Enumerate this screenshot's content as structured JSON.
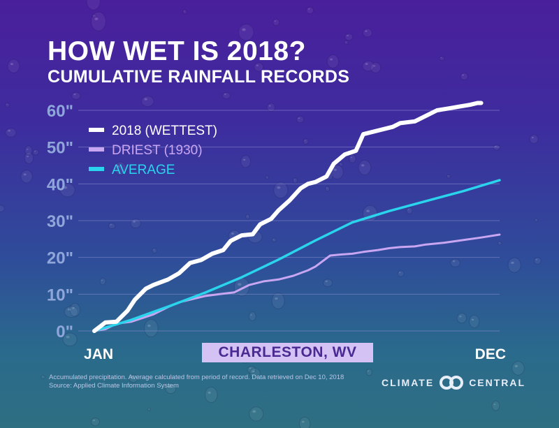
{
  "header": {
    "title": "HOW WET IS 2018?",
    "subtitle": "CUMULATIVE RAINFALL RECORDS"
  },
  "location_label": "CHARLESTON, WV",
  "footnote": {
    "line1": "Accumulated precipitation. Average calculated from period of record. Data retrieved on Dec 10, 2018",
    "line2": "Source: Applied Climate Information System"
  },
  "brand": {
    "left_word": "CLIMATE",
    "right_word": "CENTRAL"
  },
  "colors": {
    "wettest": "#ffffff",
    "driest": "#c9a6f2",
    "average": "#2ad4ec",
    "tick_label": "#8fa6da",
    "gridline": "#8a8fd0"
  },
  "chart_data": {
    "type": "line",
    "title": "CUMULATIVE RAINFALL RECORDS",
    "x_axis": {
      "type": "month-of-year",
      "tick_labels": [
        "JAN",
        "DEC"
      ],
      "range": [
        1,
        12
      ]
    },
    "y_axis": {
      "unit": "inches",
      "range": [
        0,
        60
      ],
      "tick_labels": [
        "0\"",
        "10\"",
        "20\"",
        "30\"",
        "40\"",
        "50\"",
        "60\""
      ],
      "tick_values": [
        0,
        10,
        20,
        30,
        40,
        50,
        60
      ]
    },
    "grid": "horizontal",
    "legend_position": "top-left",
    "series": [
      {
        "name": "2018 (WETTEST)",
        "color_key": "wettest",
        "x": [
          1.0,
          1.3,
          1.6,
          1.9,
          2.1,
          2.4,
          2.6,
          3.0,
          3.3,
          3.6,
          3.9,
          4.2,
          4.5,
          4.7,
          5.0,
          5.3,
          5.5,
          5.8,
          6.0,
          6.3,
          6.6,
          6.8,
          7.0,
          7.3,
          7.5,
          7.8,
          8.1,
          8.3,
          8.5,
          8.9,
          9.1,
          9.3,
          9.7,
          10.0,
          10.3,
          10.6,
          10.9,
          11.2,
          11.4,
          11.5
        ],
        "y": [
          0.0,
          2.3,
          2.5,
          5.5,
          8.5,
          11.5,
          12.5,
          14.0,
          15.7,
          18.5,
          19.3,
          21.0,
          22.0,
          24.5,
          26.0,
          26.3,
          29.0,
          30.5,
          32.8,
          35.5,
          38.8,
          40.0,
          40.5,
          42.0,
          45.5,
          48.0,
          49.0,
          53.5,
          54.0,
          55.0,
          55.5,
          56.5,
          57.0,
          58.5,
          60.0,
          60.5,
          61.0,
          61.5,
          62.0,
          62.0
        ]
      },
      {
        "name": "DRIEST (1930)",
        "color_key": "driest",
        "x": [
          1.0,
          1.3,
          1.6,
          2.0,
          2.3,
          2.6,
          3.0,
          3.3,
          3.6,
          4.0,
          4.4,
          4.8,
          5.2,
          5.6,
          6.0,
          6.4,
          6.8,
          7.0,
          7.2,
          7.4,
          7.7,
          8.0,
          8.3,
          8.7,
          9.0,
          9.3,
          9.7,
          10.0,
          10.5,
          11.0,
          11.5,
          12.0
        ],
        "y": [
          0.0,
          0.5,
          2.0,
          2.5,
          3.5,
          4.5,
          6.5,
          7.8,
          8.5,
          9.5,
          10.0,
          10.5,
          12.5,
          13.5,
          14.0,
          15.0,
          16.5,
          17.5,
          19.0,
          20.5,
          20.8,
          21.0,
          21.5,
          22.0,
          22.5,
          22.8,
          23.0,
          23.5,
          24.0,
          24.7,
          25.4,
          26.2
        ]
      },
      {
        "name": "AVERAGE",
        "color_key": "average",
        "x": [
          1.0,
          2.0,
          3.0,
          4.0,
          5.0,
          6.0,
          7.0,
          8.0,
          9.0,
          10.0,
          11.0,
          12.0
        ],
        "y": [
          0.0,
          3.0,
          6.6,
          10.4,
          14.6,
          19.4,
          24.6,
          29.5,
          32.6,
          35.3,
          38.0,
          41.0
        ]
      }
    ]
  }
}
